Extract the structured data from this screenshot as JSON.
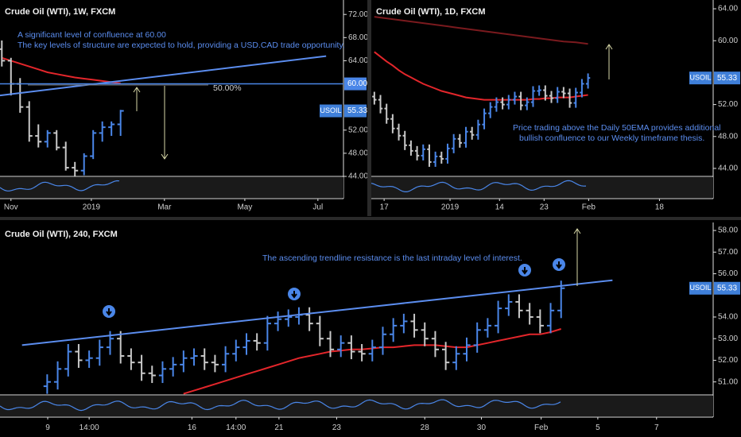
{
  "chart_data": [
    {
      "type": "ohlc",
      "title": "Crude Oil (WTI), 1W, FXCM",
      "ohlc": {
        "open": [
          66,
          64,
          60,
          56,
          51,
          50,
          51.5,
          49,
          45.5,
          45,
          47.5,
          51.5,
          52.5,
          53
        ],
        "high": [
          67.5,
          64.5,
          61,
          57,
          53,
          52,
          52,
          50,
          46.5,
          48,
          52,
          53.5,
          53.5,
          55.5
        ],
        "low": [
          63,
          58,
          55,
          50,
          49,
          49,
          48.5,
          45,
          44,
          44.2,
          47,
          50,
          51,
          51
        ],
        "close": [
          64,
          60,
          56,
          51,
          50,
          51.5,
          49,
          45.5,
          45,
          47.5,
          51.5,
          52.5,
          53,
          55.33
        ]
      },
      "up_color": "#4a86e8",
      "down_color": "#c8c8c8",
      "lines": [
        {
          "color": "#e3262b",
          "values": [
            64.5,
            64,
            63.5,
            63,
            62.5,
            62,
            61.7,
            61.4,
            61.1,
            60.9,
            60.7,
            60.5,
            60.3,
            60.1
          ]
        }
      ],
      "trendlines": [
        {
          "color": "#5b8def",
          "points": [
            [
              -0.2,
              58
            ],
            [
              35.5,
              64.8
            ]
          ]
        }
      ],
      "levels": [
        {
          "value": 60,
          "label": "60.00",
          "color": "#4a86e8"
        }
      ],
      "price_label": {
        "symbol": "USOIL",
        "value": 55.33,
        "color": "#3f7fd9"
      },
      "annotations": [
        {
          "text": "A significant level of confluence at 60.00",
          "color": "#5b8def"
        },
        {
          "text": "The key levels of structure are expected to hold, providing a USD.CAD trade opportunity.",
          "color": "#5b8def"
        },
        {
          "text": "50.00%",
          "color": "#cfcfcf"
        }
      ],
      "xlim": [
        -0.2,
        37.4
      ],
      "xticks": [
        {
          "value": 1.0,
          "label": "Nov"
        },
        {
          "value": 9.8,
          "label": "2019"
        },
        {
          "value": 17.8,
          "label": "Mar"
        },
        {
          "value": 26.6,
          "label": "May"
        },
        {
          "value": 34.6,
          "label": "Jul"
        }
      ],
      "ylim": [
        44,
        74.5
      ],
      "yticks": [
        {
          "value": 72,
          "label": "72.00"
        },
        {
          "value": 68,
          "label": "68.00"
        },
        {
          "value": 64,
          "label": "64.00"
        },
        {
          "value": 52,
          "label": "52.00"
        },
        {
          "value": 48,
          "label": "48.00"
        },
        {
          "value": 44,
          "label": "44.00"
        }
      ]
    },
    {
      "type": "ohlc",
      "title": "Crude Oil (WTI), 1D, FXCM",
      "ohlc": {
        "open": [
          53.0,
          52.6,
          51.5,
          50.2,
          49.0,
          48.1,
          46.9,
          46.2,
          45.6,
          46.4,
          44.8,
          45.5,
          45.2,
          46.5,
          47.7,
          47.2,
          48.6,
          48.2,
          49.5,
          50.9,
          51.7,
          52.3,
          52.0,
          52.6,
          53.0,
          51.9,
          52.3,
          53.7,
          53.8,
          53.1,
          52.8,
          53.6,
          53.4,
          52.2,
          53.5,
          54.6
        ],
        "high": [
          53.6,
          53.2,
          52.1,
          50.8,
          49.6,
          48.7,
          47.5,
          46.8,
          47.0,
          47.0,
          46.1,
          46.1,
          47.1,
          48.3,
          48.3,
          49.2,
          49.2,
          50.1,
          51.5,
          52.3,
          52.9,
          52.9,
          53.2,
          53.6,
          53.6,
          52.9,
          54.3,
          54.4,
          54.4,
          53.7,
          54.2,
          54.2,
          54.0,
          54.1,
          55.2,
          55.9
        ],
        "low": [
          52.0,
          50.9,
          49.6,
          48.4,
          47.5,
          46.3,
          45.6,
          45.0,
          45.0,
          44.2,
          44.2,
          44.6,
          44.6,
          45.9,
          46.6,
          46.6,
          47.6,
          47.6,
          48.9,
          50.3,
          51.1,
          51.4,
          51.4,
          52.0,
          51.3,
          51.3,
          51.7,
          53.1,
          52.5,
          52.2,
          52.2,
          52.8,
          51.6,
          51.6,
          52.9,
          54.0
        ],
        "close": [
          52.6,
          51.5,
          50.2,
          49.0,
          48.1,
          46.9,
          46.2,
          45.6,
          46.4,
          44.8,
          45.5,
          45.2,
          46.5,
          47.7,
          47.2,
          48.6,
          48.2,
          49.5,
          50.9,
          51.7,
          52.3,
          52.0,
          52.6,
          53.0,
          51.9,
          52.3,
          53.7,
          53.8,
          53.1,
          52.8,
          53.6,
          53.4,
          52.2,
          53.5,
          54.6,
          55.33
        ]
      },
      "up_color": "#4a86e8",
      "down_color": "#c8c8c8",
      "lines": [
        {
          "color": "#e3262b",
          "values": [
            58.6,
            58.0,
            57.4,
            56.9,
            56.3,
            55.8,
            55.4,
            55.0,
            54.6,
            54.3,
            54.0,
            53.7,
            53.5,
            53.3,
            53.1,
            52.9,
            52.8,
            52.7,
            52.6,
            52.6,
            52.6,
            52.6,
            52.6,
            52.6,
            52.6,
            52.6,
            52.7,
            52.7,
            52.8,
            52.8,
            52.9,
            52.9,
            52.9,
            53.0,
            53.1,
            53.2
          ]
        },
        {
          "color": "#7a1a1e",
          "values": [
            63.0,
            62.9,
            62.8,
            62.7,
            62.6,
            62.5,
            62.4,
            62.3,
            62.2,
            62.1,
            62.0,
            61.9,
            61.8,
            61.7,
            61.6,
            61.5,
            61.4,
            61.3,
            61.2,
            61.1,
            61.0,
            60.9,
            60.8,
            60.7,
            60.6,
            60.5,
            60.4,
            60.3,
            60.2,
            60.1,
            60.0,
            59.9,
            59.85,
            59.8,
            59.7,
            59.6
          ]
        }
      ],
      "price_label": {
        "symbol": "USOIL",
        "value": 55.33,
        "color": "#3f7fd9"
      },
      "annotations": [
        {
          "text": "Price trading above the Daily 50EMA provides additional",
          "color": "#5b8def"
        },
        {
          "text": "bullish confluence to our Weekly timeframe thesis.",
          "color": "#5b8def"
        }
      ],
      "xlim": [
        -0.5,
        55.5
      ],
      "xticks": [
        {
          "value": 1.6,
          "label": "17"
        },
        {
          "value": 12.4,
          "label": "2019"
        },
        {
          "value": 20.5,
          "label": "14"
        },
        {
          "value": 27.8,
          "label": "23"
        },
        {
          "value": 35.1,
          "label": "Feb"
        },
        {
          "value": 46.7,
          "label": "18"
        }
      ],
      "ylim": [
        43,
        65.1
      ],
      "yticks": [
        {
          "value": 64,
          "label": "64.00"
        },
        {
          "value": 60,
          "label": "60.00"
        },
        {
          "value": 52,
          "label": "52.00"
        },
        {
          "value": 48,
          "label": "48.00"
        },
        {
          "value": 44,
          "label": "44.00"
        }
      ]
    },
    {
      "type": "ohlc",
      "title": "Crude Oil (WTI), 240, FXCM",
      "ohlc": {
        "open": [
          50.8,
          51.0,
          51.6,
          52.4,
          52.0,
          52.1,
          52.6,
          53.0,
          52.2,
          51.9,
          51.4,
          51.3,
          51.6,
          51.8,
          52.1,
          52.2,
          51.9,
          51.8,
          52.3,
          52.6,
          52.9,
          52.8,
          53.7,
          53.9,
          54.0,
          54.1,
          53.7,
          53.0,
          52.5,
          52.8,
          52.4,
          52.3,
          52.6,
          53.2,
          53.6,
          53.8,
          53.4,
          53.0,
          52.5,
          51.9,
          52.3,
          52.7,
          53.4,
          53.6,
          54.4,
          54.7,
          54.3,
          54.0,
          53.6,
          54.3
        ],
        "high": [
          51.35,
          51.95,
          52.75,
          52.75,
          52.45,
          52.95,
          53.35,
          53.35,
          52.55,
          52.25,
          51.75,
          51.95,
          52.15,
          52.45,
          52.55,
          52.55,
          52.25,
          52.65,
          52.95,
          53.25,
          53.25,
          54.05,
          54.25,
          54.35,
          54.45,
          54.45,
          54.05,
          53.35,
          53.15,
          53.15,
          52.75,
          52.95,
          53.55,
          53.95,
          54.15,
          54.15,
          53.75,
          53.35,
          52.85,
          52.65,
          53.05,
          53.75,
          53.95,
          54.75,
          55.05,
          55.05,
          54.65,
          54.35,
          54.65,
          55.68
        ],
        "low": [
          50.45,
          50.65,
          51.25,
          51.65,
          51.65,
          51.75,
          52.25,
          51.85,
          51.55,
          51.05,
          50.95,
          50.95,
          51.25,
          51.45,
          51.75,
          51.55,
          51.45,
          51.45,
          51.95,
          52.25,
          52.45,
          52.45,
          53.35,
          53.55,
          53.65,
          53.35,
          52.65,
          52.15,
          52.15,
          52.05,
          51.95,
          51.95,
          52.25,
          52.85,
          53.25,
          53.05,
          52.65,
          52.15,
          51.55,
          51.55,
          51.95,
          52.35,
          53.05,
          53.25,
          54.05,
          53.95,
          53.65,
          53.25,
          53.25,
          53.95
        ],
        "close": [
          51.0,
          51.6,
          52.4,
          52.0,
          52.1,
          52.6,
          53.0,
          52.2,
          51.9,
          51.4,
          51.3,
          51.6,
          51.8,
          52.1,
          52.2,
          51.9,
          51.8,
          52.3,
          52.6,
          52.9,
          52.8,
          53.7,
          53.9,
          54.0,
          54.1,
          53.7,
          53.0,
          52.5,
          52.8,
          52.4,
          52.3,
          52.6,
          53.2,
          53.6,
          53.8,
          53.4,
          53.0,
          52.5,
          51.9,
          52.3,
          52.7,
          53.4,
          53.6,
          54.4,
          54.7,
          54.3,
          54.0,
          53.6,
          54.3,
          55.33
        ]
      },
      "up_color": "#4a86e8",
      "down_color": "#c8c8c8",
      "lines": [
        {
          "color": "#e3262b",
          "values": [
            null,
            null,
            null,
            null,
            null,
            null,
            null,
            null,
            null,
            null,
            null,
            null,
            null,
            50.45,
            50.6,
            50.75,
            50.9,
            51.05,
            51.2,
            51.35,
            51.5,
            51.65,
            51.8,
            51.95,
            52.1,
            52.2,
            52.3,
            52.4,
            52.45,
            52.5,
            52.5,
            52.55,
            52.6,
            52.6,
            52.65,
            52.7,
            52.7,
            52.7,
            52.65,
            52.6,
            52.6,
            52.7,
            52.8,
            52.9,
            53.0,
            53.1,
            53.2,
            53.2,
            53.3,
            53.45
          ]
        }
      ],
      "trendlines": [
        {
          "color": "#5b8def",
          "points": [
            [
              -2.4,
              52.7
            ],
            [
              53.9,
              55.7
            ]
          ]
        }
      ],
      "price_label": {
        "symbol": "USOIL",
        "value": 55.33,
        "color": "#3f7fd9"
      },
      "annotations": [
        {
          "text": "The ascending trendline resistance is the last intraday level of interest.",
          "color": "#5b8def"
        }
      ],
      "xlim": [
        -4.5,
        63.5
      ],
      "xticks": [
        {
          "value": 0.05,
          "label": "9"
        },
        {
          "value": 4.0,
          "label": "14:00"
        },
        {
          "value": 13.8,
          "label": "16"
        },
        {
          "value": 18.0,
          "label": "14:00"
        },
        {
          "value": 22.1,
          "label": "21"
        },
        {
          "value": 27.6,
          "label": "23"
        },
        {
          "value": 36.0,
          "label": "28"
        },
        {
          "value": 41.4,
          "label": "30"
        },
        {
          "value": 47.1,
          "label": "Feb"
        },
        {
          "value": 52.5,
          "label": "5"
        },
        {
          "value": 58.1,
          "label": "7"
        }
      ],
      "ylim": [
        50.4,
        58.37
      ],
      "yticks": [
        {
          "value": 58,
          "label": "58.00"
        },
        {
          "value": 57,
          "label": "57.00"
        },
        {
          "value": 56,
          "label": "56.00"
        },
        {
          "value": 54,
          "label": "54.00"
        },
        {
          "value": 53,
          "label": "53.00"
        },
        {
          "value": 52,
          "label": "52.00"
        },
        {
          "value": 51,
          "label": "51.00"
        }
      ]
    }
  ]
}
